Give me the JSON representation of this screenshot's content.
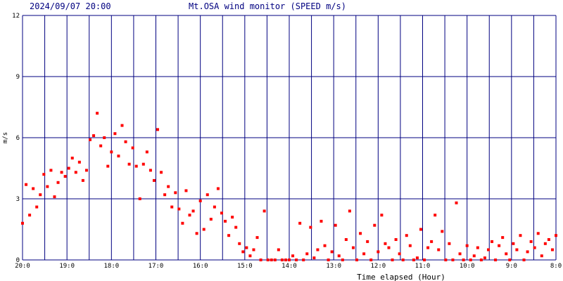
{
  "chart_data": {
    "type": "scatter",
    "date": "2024/09/07 20:00",
    "title": "Mt.OSA wind monitor (SPEED m/s)",
    "y_label": "m/s",
    "x_label": "Time elapsed (Hour)",
    "xlim": [
      0,
      12
    ],
    "ylim": [
      0,
      12
    ],
    "xticks": [
      {
        "value": 0,
        "label": "20:0"
      },
      {
        "value": 1,
        "label": "19:0"
      },
      {
        "value": 2,
        "label": "18:0"
      },
      {
        "value": 3,
        "label": "17:0"
      },
      {
        "value": 4,
        "label": "16:0"
      },
      {
        "value": 5,
        "label": "15:0"
      },
      {
        "value": 6,
        "label": "14:0"
      },
      {
        "value": 7,
        "label": "13:0"
      },
      {
        "value": 8,
        "label": "12:0"
      },
      {
        "value": 9,
        "label": "11:0"
      },
      {
        "value": 10,
        "label": "10:0"
      },
      {
        "value": 11,
        "label": "9:0"
      },
      {
        "value": 12,
        "label": "8:0"
      }
    ],
    "xminorticks": [
      0.5,
      1.5,
      2.5,
      3.5,
      4.5,
      5.5,
      6.5,
      7.5,
      8.5,
      9.5,
      10.5,
      11.5
    ],
    "yticks": [
      0,
      3,
      6,
      9,
      12
    ],
    "grid": true,
    "grid_color": "#000080",
    "series": [
      {
        "color": "#ff0000",
        "x": [
          0,
          0.08,
          0.16,
          0.24,
          0.32,
          0.4,
          0.48,
          0.56,
          0.64,
          0.72,
          0.8,
          0.88,
          0.96,
          1.04,
          1.12,
          1.2,
          1.28,
          1.36,
          1.44,
          1.52,
          1.6,
          1.68,
          1.76,
          1.84,
          1.92,
          2,
          2.08,
          2.16,
          2.24,
          2.32,
          2.4,
          2.48,
          2.56,
          2.64,
          2.72,
          2.8,
          2.88,
          2.96,
          3.04,
          3.12,
          3.2,
          3.28,
          3.36,
          3.44,
          3.52,
          3.6,
          3.68,
          3.76,
          3.84,
          3.92,
          4,
          4.08,
          4.16,
          4.24,
          4.32,
          4.4,
          4.48,
          4.56,
          4.64,
          4.72,
          4.8,
          4.88,
          4.96,
          5.04,
          5.12,
          5.2,
          5.28,
          5.36,
          5.44,
          5.52,
          5.6,
          5.68,
          5.76,
          5.84,
          5.92,
          6,
          6.08,
          6.16,
          6.24,
          6.32,
          6.4,
          6.48,
          6.56,
          6.64,
          6.72,
          6.8,
          6.88,
          6.96,
          7.04,
          7.12,
          7.2,
          7.28,
          7.36,
          7.44,
          7.52,
          7.6,
          7.68,
          7.76,
          7.84,
          7.92,
          8,
          8.08,
          8.16,
          8.24,
          8.32,
          8.4,
          8.48,
          8.56,
          8.64,
          8.72,
          8.8,
          8.88,
          8.96,
          9.04,
          9.12,
          9.2,
          9.28,
          9.36,
          9.44,
          9.52,
          9.6,
          9.68,
          9.76,
          9.84,
          9.92,
          10,
          10.08,
          10.16,
          10.24,
          10.32,
          10.4,
          10.48,
          10.56,
          10.64,
          10.72,
          10.8,
          10.88,
          10.96,
          11.04,
          11.12,
          11.2,
          11.28,
          11.36,
          11.44,
          11.52,
          11.6,
          11.68,
          11.76,
          11.84,
          11.92,
          12
        ],
        "values": [
          1.8,
          3.7,
          2.2,
          3.5,
          2.6,
          3.2,
          4.2,
          3.6,
          4.4,
          3.1,
          3.8,
          4.3,
          4.1,
          4.5,
          5.0,
          4.3,
          4.8,
          3.9,
          4.4,
          5.9,
          6.1,
          7.2,
          5.6,
          6.0,
          4.6,
          5.3,
          6.2,
          5.1,
          6.6,
          5.8,
          4.7,
          5.5,
          4.6,
          3.0,
          4.7,
          5.3,
          4.4,
          3.9,
          6.4,
          4.3,
          3.2,
          3.6,
          2.6,
          3.3,
          2.5,
          1.8,
          3.4,
          2.2,
          2.4,
          1.3,
          2.9,
          1.5,
          3.2,
          2.0,
          2.6,
          3.5,
          2.3,
          1.9,
          1.2,
          2.1,
          1.6,
          0.8,
          0.4,
          0.6,
          0.2,
          0.5,
          1.1,
          0.0,
          2.4,
          0.0,
          0.0,
          0.0,
          0.5,
          0.0,
          0.0,
          0.0,
          0.2,
          0.0,
          1.8,
          0.0,
          0.3,
          1.6,
          0.1,
          0.5,
          1.9,
          0.7,
          0.0,
          0.4,
          1.7,
          0.2,
          0.0,
          1.0,
          2.4,
          0.6,
          0.0,
          1.3,
          0.3,
          0.9,
          0.0,
          1.7,
          0.4,
          2.2,
          0.8,
          0.6,
          0.0,
          1.0,
          0.3,
          0.0,
          1.2,
          0.7,
          0.0,
          0.1,
          1.5,
          0.0,
          0.6,
          0.9,
          2.2,
          0.5,
          1.4,
          0.0,
          0.8,
          0.0,
          2.8,
          0.3,
          0.0,
          0.7,
          0.0,
          0.2,
          0.6,
          0.0,
          0.1,
          0.5,
          0.9,
          0.0,
          0.7,
          1.1,
          0.3,
          0.0,
          0.8,
          0.5,
          1.2,
          0.0,
          0.4,
          0.9,
          0.6,
          1.3,
          0.2,
          0.8,
          1.0,
          0.5,
          1.2
        ]
      }
    ]
  }
}
